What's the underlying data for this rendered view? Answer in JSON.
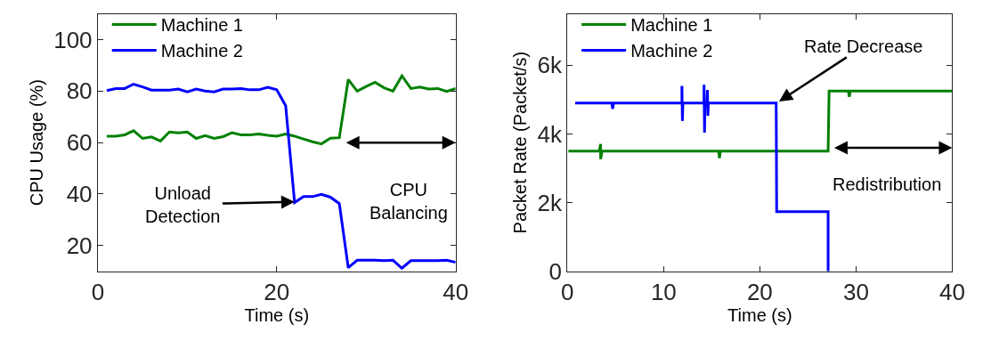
{
  "chart_data": [
    {
      "type": "line",
      "xlabel": "Time (s)",
      "ylabel": "CPU Usage (%)",
      "xlim": [
        0,
        40
      ],
      "xticks": [
        0,
        20,
        40
      ],
      "ylim": [
        10,
        110
      ],
      "yticks": [
        20,
        40,
        60,
        80,
        100
      ],
      "legend": "top left",
      "marker": "none",
      "line_style": "solid",
      "x": [
        1,
        2,
        3,
        4,
        5,
        6,
        7,
        8,
        9,
        10,
        11,
        12,
        13,
        14,
        15,
        16,
        17,
        18,
        19,
        20,
        21,
        22,
        23,
        24,
        25,
        26,
        27,
        28,
        29,
        30,
        31,
        32,
        33,
        34,
        35,
        36,
        37,
        38,
        39,
        40
      ],
      "series": [
        {
          "name": "Machine 1",
          "color": "#008000",
          "values": [
            62.5,
            62.5,
            63,
            64.6,
            61.6,
            62.2,
            60.6,
            64.1,
            63.8,
            64.1,
            61.6,
            62.7,
            61.6,
            62.3,
            63.8,
            63,
            63,
            63.3,
            62.8,
            62.5,
            63.3,
            62.5,
            61.4,
            60.3,
            59.5,
            61.7,
            61.9,
            84.5,
            80,
            81.8,
            83.4,
            81.3,
            80,
            85.9,
            81,
            81.6,
            80.8,
            81,
            79.9,
            81
          ]
        },
        {
          "name": "Machine 2",
          "color": "#0000ff",
          "values": [
            80.2,
            81,
            81,
            82.7,
            81.6,
            80.4,
            80.4,
            80.4,
            80.8,
            79.7,
            80.8,
            80,
            79.7,
            80.8,
            80.8,
            81,
            80.5,
            80.5,
            81.5,
            80.5,
            74.3,
            36.7,
            39,
            39,
            39.9,
            38.8,
            36.3,
            11.4,
            14.3,
            14.3,
            14.3,
            14.1,
            14.3,
            11.2,
            14.1,
            14.1,
            14.1,
            14.1,
            14.3,
            13.5
          ]
        }
      ],
      "annotations": [
        {
          "text": "Unload Detection",
          "x": 22,
          "y": 37
        },
        "CPU Balancing"
      ]
    },
    {
      "type": "line",
      "xlabel": "Time (s)",
      "ylabel": "Packet Rate (Packet/s)",
      "xlim": [
        0,
        40
      ],
      "xticks": [
        0,
        10,
        20,
        30,
        40
      ],
      "ylim": [
        0,
        7500
      ],
      "yticks": [
        0,
        {
          "value": 2000,
          "label": "2k"
        },
        {
          "value": 4000,
          "label": "4k"
        },
        {
          "value": 6000,
          "label": "6k"
        }
      ],
      "legend": "top left",
      "marker": "none",
      "line_style": "solid",
      "series": [
        {
          "name": "Machine 1",
          "color": "#008000",
          "x": [
            0.1,
            3.3,
            3.45,
            3.45,
            3.6,
            15.7,
            15.8,
            15.9,
            21.5,
            27.1,
            27.2,
            29.2,
            29.3,
            29.4,
            40
          ],
          "values": [
            3500,
            3500,
            3710,
            3270,
            3500,
            3500,
            3300,
            3500,
            3500,
            3500,
            5250,
            5250,
            5080,
            5250,
            5250
          ]
        },
        {
          "name": "Machine 2",
          "color": "#0000ff",
          "x": [
            0.8,
            4.6,
            4.7,
            4.8,
            11.9,
            11.9,
            11.95,
            12.0,
            14.2,
            14.2,
            14.25,
            14.3,
            14.5,
            14.55,
            14.6,
            14.65,
            21.7,
            21.75,
            27.1,
            27.1
          ],
          "values": [
            4900,
            4900,
            4730,
            4900,
            4900,
            5400,
            4380,
            4900,
            4900,
            5430,
            4040,
            4900,
            4900,
            5280,
            4530,
            4900,
            4900,
            1740,
            1740,
            0
          ]
        }
      ],
      "annotations": [
        {
          "text": "Rate Decrease",
          "x": 22,
          "y": 4950
        },
        "Redistribution"
      ]
    }
  ]
}
